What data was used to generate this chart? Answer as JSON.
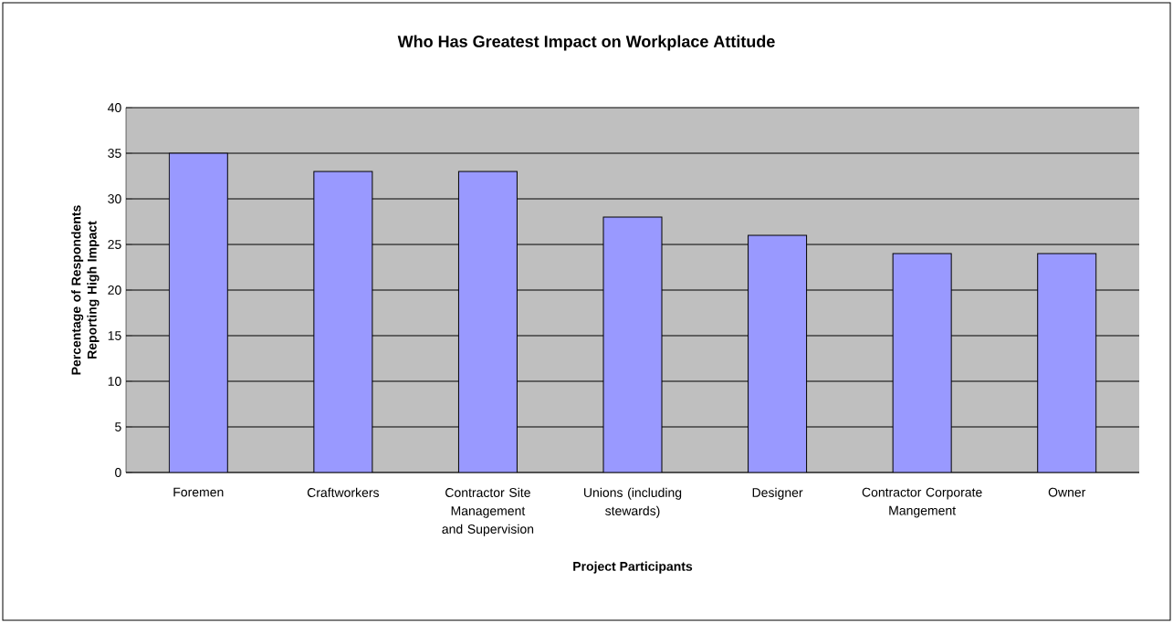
{
  "chart_data": {
    "type": "bar",
    "title": "Who Has Greatest Impact on Workplace Attitude",
    "xlabel": "Project Participants",
    "ylabel": "Percentage of Respondents Reporting High Impact",
    "categories": [
      "Foremen",
      "Craftworkers",
      "Contractor Site Management and Supervision",
      "Unions (including stewards)",
      "Designer",
      "Contractor Corporate Mangement",
      "Owner"
    ],
    "values": [
      35,
      33,
      33,
      28,
      26,
      24,
      24
    ],
    "color": "#9999ff",
    "ylim": [
      0,
      40
    ],
    "yticks": [
      0,
      5,
      10,
      15,
      20,
      25,
      30,
      35,
      40
    ],
    "grid": "y"
  }
}
